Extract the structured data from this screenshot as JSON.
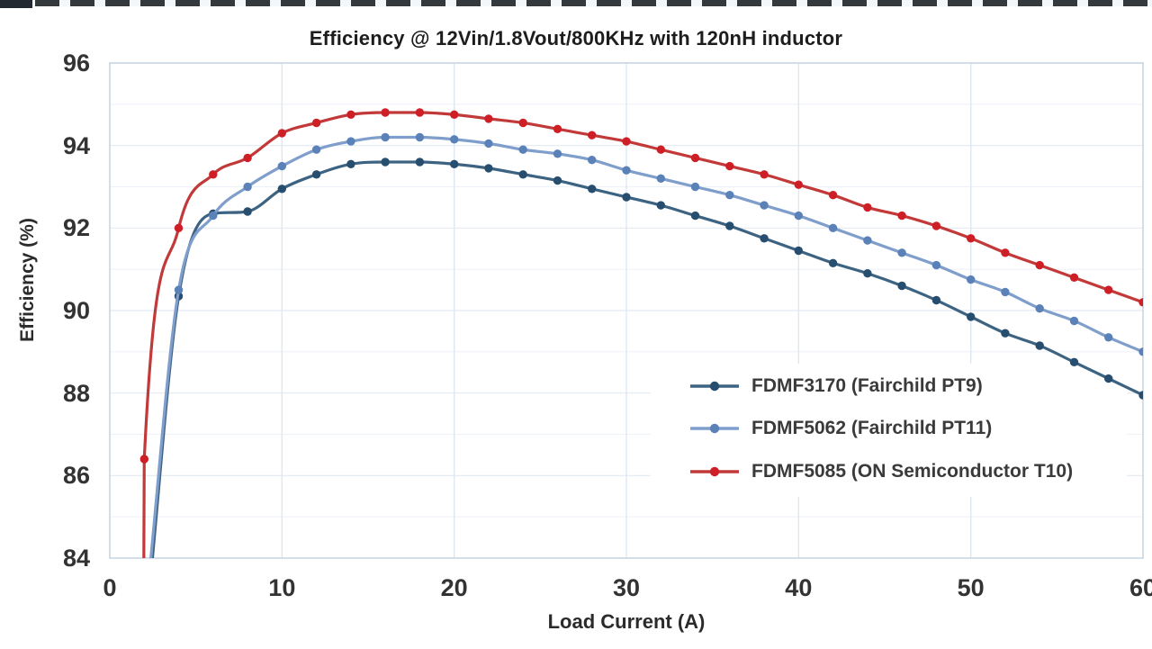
{
  "chart_data": {
    "type": "line",
    "title": "Efficiency @ 12Vin/1.8Vout/800KHz with 120nH inductor",
    "xlabel": "Load Current (A)",
    "ylabel": "Efficiency (%)",
    "xlim": [
      0,
      60
    ],
    "ylim": [
      84,
      96
    ],
    "x_ticks": [
      0,
      10,
      20,
      30,
      40,
      50,
      60
    ],
    "y_ticks": [
      84,
      86,
      88,
      90,
      92,
      94,
      96
    ],
    "grid": {
      "horizontal_step_pct": 1,
      "vertical_step_A": 10,
      "minor_color": "#eef2f8",
      "major_color": "#e3eaf3",
      "vertical_color": "#dfe8f2",
      "frame_color": "#c8d5e3"
    },
    "legend_position": "inside-right",
    "marker_style": "filled-circle",
    "series": [
      {
        "name": "FDMF3170 (Fairchild PT9)",
        "line_color": "#3d6382",
        "marker_color": "#274e6e",
        "points": [
          [
            2.25,
            83.0
          ],
          [
            4,
            90.35
          ],
          [
            6,
            92.35
          ],
          [
            8,
            92.4
          ],
          [
            10,
            92.95
          ],
          [
            12,
            93.3
          ],
          [
            14,
            93.55
          ],
          [
            16,
            93.6
          ],
          [
            18,
            93.6
          ],
          [
            20,
            93.55
          ],
          [
            22,
            93.45
          ],
          [
            24,
            93.3
          ],
          [
            26,
            93.15
          ],
          [
            28,
            92.95
          ],
          [
            30,
            92.75
          ],
          [
            32,
            92.55
          ],
          [
            34,
            92.3
          ],
          [
            36,
            92.05
          ],
          [
            38,
            91.75
          ],
          [
            40,
            91.45
          ],
          [
            42,
            91.15
          ],
          [
            44,
            90.9
          ],
          [
            46,
            90.6
          ],
          [
            48,
            90.25
          ],
          [
            50,
            89.85
          ],
          [
            52,
            89.45
          ],
          [
            54,
            89.15
          ],
          [
            56,
            88.75
          ],
          [
            58,
            88.35
          ],
          [
            60,
            87.95
          ]
        ]
      },
      {
        "name": "FDMF5062 (Fairchild PT11)",
        "line_color": "#7f9ecb",
        "marker_color": "#5a82b8",
        "points": [
          [
            2.15,
            83.0
          ],
          [
            4,
            90.5
          ],
          [
            6,
            92.3
          ],
          [
            8,
            93.0
          ],
          [
            10,
            93.5
          ],
          [
            12,
            93.9
          ],
          [
            14,
            94.1
          ],
          [
            16,
            94.2
          ],
          [
            18,
            94.2
          ],
          [
            20,
            94.15
          ],
          [
            22,
            94.05
          ],
          [
            24,
            93.9
          ],
          [
            26,
            93.8
          ],
          [
            28,
            93.65
          ],
          [
            30,
            93.4
          ],
          [
            32,
            93.2
          ],
          [
            34,
            93.0
          ],
          [
            36,
            92.8
          ],
          [
            38,
            92.55
          ],
          [
            40,
            92.3
          ],
          [
            42,
            92.0
          ],
          [
            44,
            91.7
          ],
          [
            46,
            91.4
          ],
          [
            48,
            91.1
          ],
          [
            50,
            90.75
          ],
          [
            52,
            90.45
          ],
          [
            54,
            90.05
          ],
          [
            56,
            89.75
          ],
          [
            58,
            89.35
          ],
          [
            60,
            89.0
          ]
        ]
      },
      {
        "name": "FDMF5085 (ON Semiconductor T10)",
        "line_color": "#c23939",
        "marker_color": "#cf1f26",
        "points": [
          [
            1.97,
            83.0
          ],
          [
            2,
            86.4
          ],
          [
            4,
            92.0
          ],
          [
            6,
            93.3
          ],
          [
            8,
            93.7
          ],
          [
            10,
            94.3
          ],
          [
            12,
            94.55
          ],
          [
            14,
            94.75
          ],
          [
            16,
            94.8
          ],
          [
            18,
            94.8
          ],
          [
            20,
            94.75
          ],
          [
            22,
            94.65
          ],
          [
            24,
            94.55
          ],
          [
            26,
            94.4
          ],
          [
            28,
            94.25
          ],
          [
            30,
            94.1
          ],
          [
            32,
            93.9
          ],
          [
            34,
            93.7
          ],
          [
            36,
            93.5
          ],
          [
            38,
            93.3
          ],
          [
            40,
            93.05
          ],
          [
            42,
            92.8
          ],
          [
            44,
            92.5
          ],
          [
            46,
            92.3
          ],
          [
            48,
            92.05
          ],
          [
            50,
            91.75
          ],
          [
            52,
            91.4
          ],
          [
            54,
            91.1
          ],
          [
            56,
            90.8
          ],
          [
            58,
            90.5
          ],
          [
            60,
            90.2
          ]
        ]
      }
    ]
  }
}
